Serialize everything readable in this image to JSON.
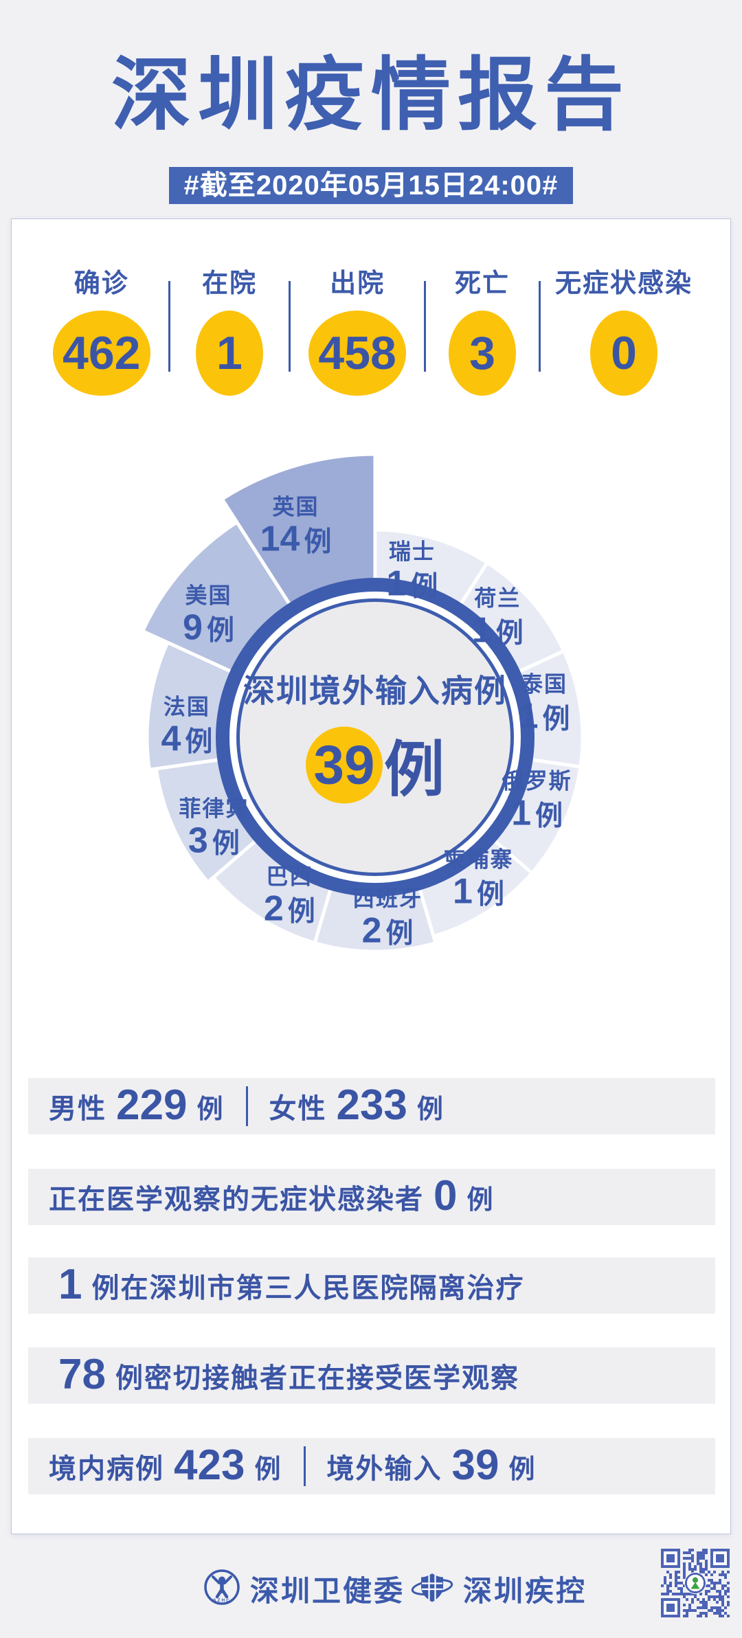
{
  "colors": {
    "primary": "#3c5aab",
    "badge_bg": "#4466b4",
    "yellow": "#fcc30b",
    "strip_bg": "#efeff2",
    "page_bg": "#f1f1f4",
    "ring_blue": "#3e5daf",
    "center_disc": "#ebebee"
  },
  "header": {
    "title": "深圳疫情报告",
    "subtitle": "#截至2020年05月15日24:00#"
  },
  "stats": [
    {
      "key": "confirmed",
      "label": "确诊",
      "value": "462"
    },
    {
      "key": "inhospital",
      "label": "在院",
      "value": "1"
    },
    {
      "key": "discharged",
      "label": "出院",
      "value": "458"
    },
    {
      "key": "deaths",
      "label": "死亡",
      "value": "3"
    },
    {
      "key": "asymptomatic",
      "label": "无症状感染",
      "value": "0"
    }
  ],
  "chart_data": {
    "type": "pie",
    "variant": "nightingale-rose",
    "title": "深圳境外输入病例",
    "center_value": "39",
    "center_unit": "例",
    "unit": "例",
    "categories": [
      "瑞士",
      "荷兰",
      "泰国",
      "俄罗斯",
      "柬埔寨",
      "西班牙",
      "巴西",
      "菲律宾",
      "法国",
      "美国",
      "英国"
    ],
    "values": [
      1,
      1,
      1,
      1,
      1,
      2,
      2,
      3,
      4,
      9,
      14
    ],
    "slices": [
      {
        "country": "瑞士",
        "value": 1
      },
      {
        "country": "荷兰",
        "value": 1
      },
      {
        "country": "泰国",
        "value": 1
      },
      {
        "country": "俄罗斯",
        "value": 1
      },
      {
        "country": "柬埔寨",
        "value": 1
      },
      {
        "country": "西班牙",
        "value": 2
      },
      {
        "country": "巴西",
        "value": 2
      },
      {
        "country": "菲律宾",
        "value": 3
      },
      {
        "country": "法国",
        "value": 4
      },
      {
        "country": "美国",
        "value": 9
      },
      {
        "country": "英国",
        "value": 14
      }
    ],
    "layout": {
      "equal_angles": true,
      "start_angle_deg": -90,
      "clockwise": true,
      "legend": "labels-inside-slices"
    },
    "colors_by_value": {
      "1": "#e8ebf4",
      "2": "#dfe4f0",
      "3": "#d3dbec",
      "4": "#cbd4e9",
      "9": "#b4c1e0",
      "14": "#9dacd6"
    }
  },
  "summary_rows": [
    {
      "segments": [
        {
          "t": "label",
          "v": "男性"
        },
        {
          "t": "num",
          "v": "229"
        },
        {
          "t": "unit",
          "v": "例"
        },
        {
          "t": "sep"
        },
        {
          "t": "label",
          "v": "女性"
        },
        {
          "t": "num",
          "v": "233"
        },
        {
          "t": "unit",
          "v": "例"
        }
      ]
    },
    {
      "segments": [
        {
          "t": "label",
          "v": "正在医学观察的无症状感染者"
        },
        {
          "t": "num",
          "v": "0"
        },
        {
          "t": "unit",
          "v": "例"
        }
      ]
    },
    {
      "segments": [
        {
          "t": "num",
          "v": "1"
        },
        {
          "t": "label",
          "v": "例在深圳市第三人民医院隔离治疗"
        }
      ]
    },
    {
      "segments": [
        {
          "t": "num",
          "v": "78"
        },
        {
          "t": "label",
          "v": "例密切接触者正在接受医学观察"
        }
      ]
    },
    {
      "segments": [
        {
          "t": "label",
          "v": "境内病例"
        },
        {
          "t": "num",
          "v": "423"
        },
        {
          "t": "unit",
          "v": "例"
        },
        {
          "t": "sep"
        },
        {
          "t": "label",
          "v": "境外输入"
        },
        {
          "t": "num",
          "v": "39"
        },
        {
          "t": "unit",
          "v": "例"
        }
      ]
    }
  ],
  "footer": {
    "org1": "深圳卫健委",
    "org2": "深圳疾控",
    "icons": [
      "shenzhen-health-commission-logo",
      "shenzhen-cdc-shield-logo",
      "qr-code"
    ]
  }
}
